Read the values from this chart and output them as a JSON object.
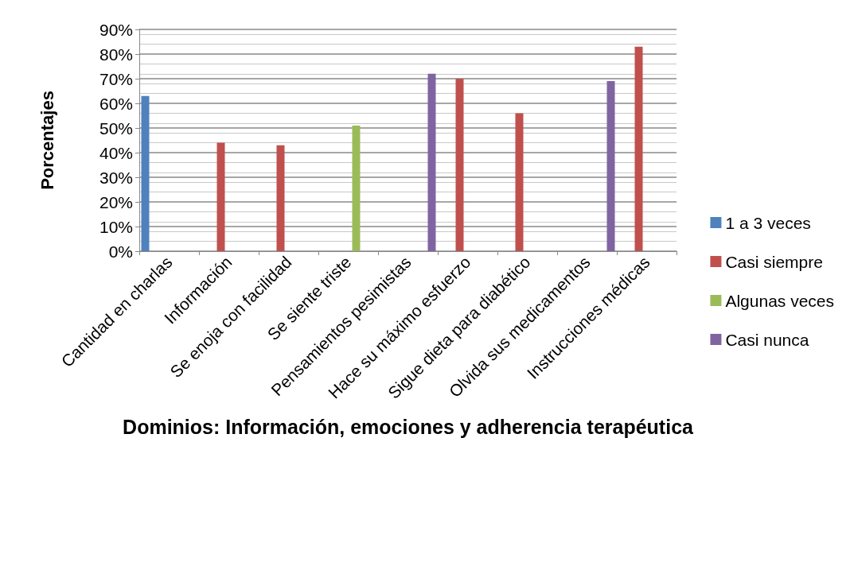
{
  "chart_data": {
    "type": "bar",
    "xlabel": "Dominios: Información, emociones y adherencia terapéutica",
    "ylabel": "Porcentajes",
    "categories": [
      "Cantidad en charlas",
      "Información",
      "Se enoja con facilidad",
      "Se siente triste",
      "Pensamientos pesimistas",
      "Hace su máximo esfuerzo",
      "Sigue dieta para diabético",
      "Olvida sus medicamentos",
      "Instrucciones médicas"
    ],
    "series": [
      {
        "name": "1 a 3 veces",
        "color": "#4f81bd",
        "values": [
          63,
          null,
          null,
          null,
          null,
          null,
          null,
          null,
          null
        ]
      },
      {
        "name": "Casi siempre",
        "color": "#c0504d",
        "values": [
          null,
          44,
          43,
          null,
          null,
          70,
          56,
          null,
          83
        ]
      },
      {
        "name": "Algunas veces",
        "color": "#9bbb59",
        "values": [
          null,
          null,
          null,
          51,
          null,
          null,
          null,
          null,
          null
        ]
      },
      {
        "name": "Casi nunca",
        "color": "#8064a2",
        "values": [
          null,
          null,
          null,
          null,
          72,
          null,
          null,
          69,
          null
        ]
      }
    ],
    "ylim": [
      0,
      90
    ],
    "yticks": [
      {
        "value": 0,
        "label": "0%"
      },
      {
        "value": 10,
        "label": "10%"
      },
      {
        "value": 20,
        "label": "20%"
      },
      {
        "value": 30,
        "label": "30%"
      },
      {
        "value": 40,
        "label": "40%"
      },
      {
        "value": 50,
        "label": "50%"
      },
      {
        "value": 60,
        "label": "60%"
      },
      {
        "value": 70,
        "label": "70%"
      },
      {
        "value": 80,
        "label": "80%"
      },
      {
        "value": 90,
        "label": "90%"
      }
    ],
    "grid": "y",
    "legend": "right"
  }
}
